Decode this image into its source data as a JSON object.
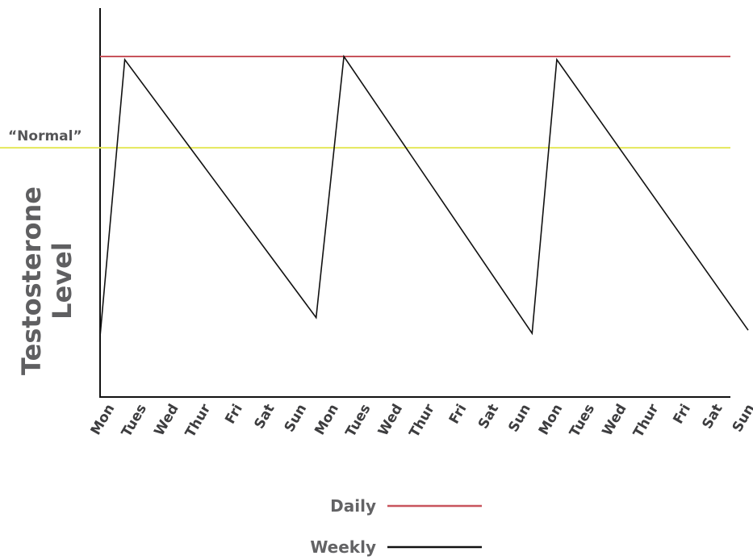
{
  "chart_data": {
    "type": "line",
    "title": "",
    "ylabel": "Testosterone Level",
    "xlabel": "",
    "categories": [
      "Mon",
      "Tues",
      "Wed",
      "Thur",
      "Fri",
      "Sat",
      "Sun",
      "Mon",
      "Tues",
      "Wed",
      "Thur",
      "Fri",
      "Sat",
      "Sun",
      "Mon",
      "Tues",
      "Wed",
      "Thur",
      "Fri",
      "Sat",
      "Sun"
    ],
    "ylim": [
      0,
      100
    ],
    "y_ticks_shown": false,
    "grid": false,
    "legend_position": "bottom-center",
    "reference_lines": [
      {
        "label": "“Normal”",
        "y": 70,
        "color": "#e4e85a"
      }
    ],
    "series": [
      {
        "name": "Daily",
        "color": "#c8545c",
        "style": "constant",
        "points": [
          {
            "x": 0,
            "y": 99
          },
          {
            "x": 20,
            "y": 99
          }
        ]
      },
      {
        "name": "Weekly",
        "color": "#111111",
        "style": "sawtooth",
        "points": [
          {
            "x": 0,
            "y": 10
          },
          {
            "x": 0.8,
            "y": 98
          },
          {
            "x": 7,
            "y": 16
          },
          {
            "x": 7.9,
            "y": 99
          },
          {
            "x": 14,
            "y": 11
          },
          {
            "x": 14.8,
            "y": 98
          },
          {
            "x": 21,
            "y": 12
          }
        ]
      }
    ]
  }
}
